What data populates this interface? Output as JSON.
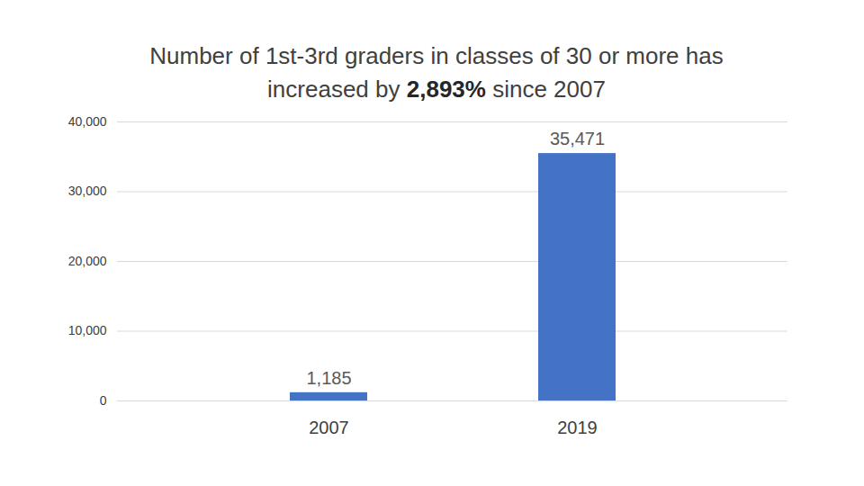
{
  "chart_data": {
    "type": "bar",
    "title": "Number of 1st-3rd graders in classes of 30 or more has increased by 2,893% since 2007",
    "categories": [
      "2007",
      "2019"
    ],
    "values": [
      1185,
      35471
    ],
    "value_labels": [
      "1,185",
      "35,471"
    ],
    "color": "#4472c4",
    "ylim": [
      0,
      40000
    ],
    "yticks": [
      0,
      {
        "value": 10000,
        "label": "10,000"
      },
      {
        "value": 20000,
        "label": "20,000"
      },
      {
        "value": 30000,
        "label": "30,000"
      },
      {
        "value": 40000,
        "label": "40,000"
      }
    ],
    "grid": true,
    "data_labels": true
  }
}
